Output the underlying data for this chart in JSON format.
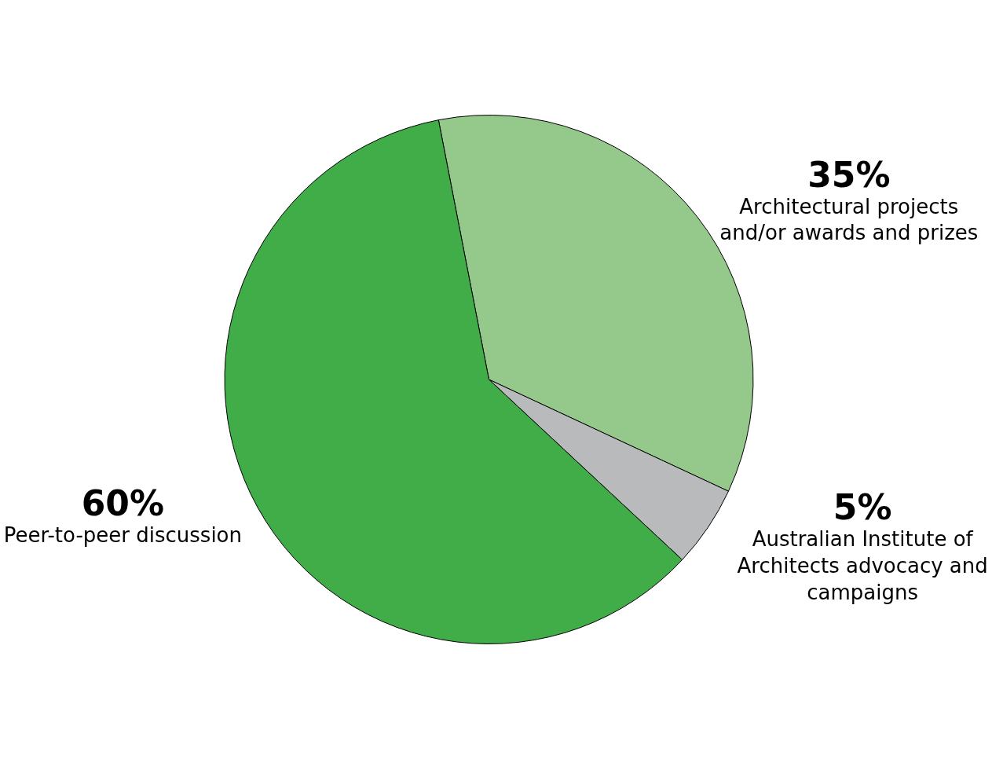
{
  "chart_data": {
    "type": "pie",
    "categories": [
      "Architectural projects and/or awards and prizes",
      "Australian Institute of Architects advocacy and campaigns",
      "Peer-to-peer discussion"
    ],
    "values": [
      35,
      5,
      60
    ],
    "value_labels": [
      "35%",
      "5%",
      "60%"
    ],
    "colors": [
      "#95c88b",
      "#b8babc",
      "#41ad49"
    ],
    "legend": false
  }
}
